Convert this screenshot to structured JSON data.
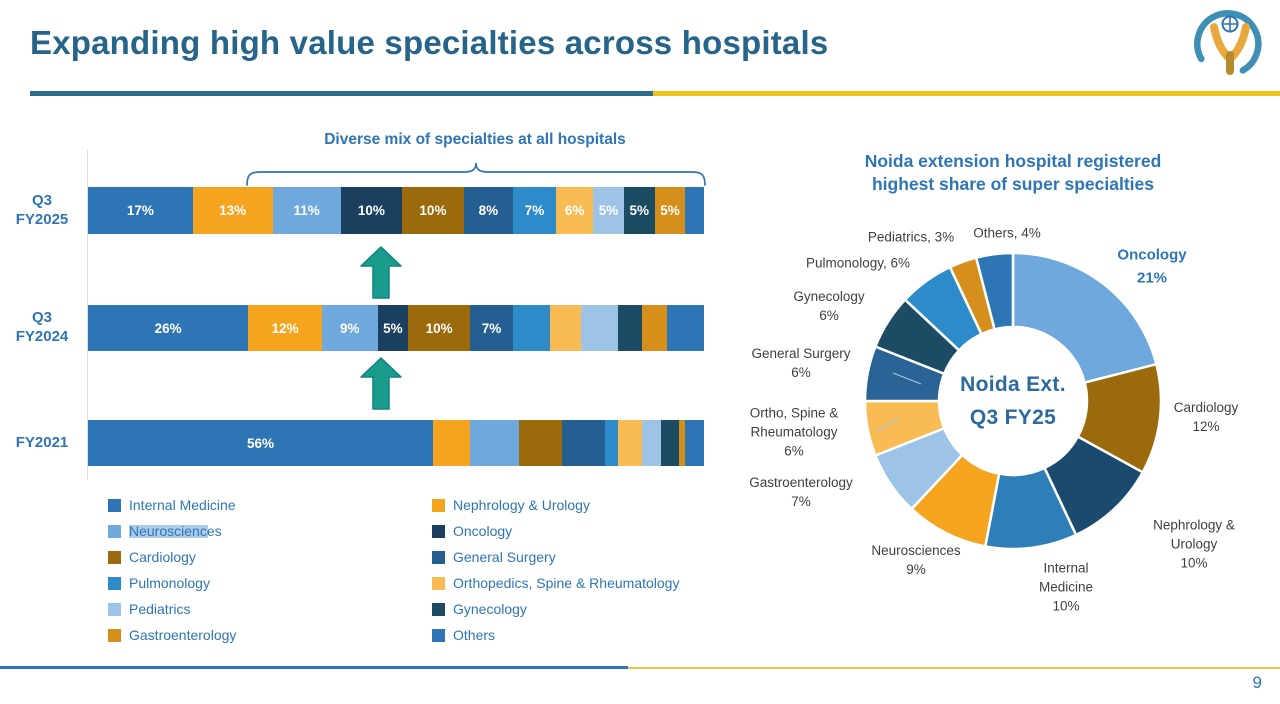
{
  "header": {
    "title": "Expanding high value specialties across hospitals"
  },
  "footer": {
    "page_number": "9"
  },
  "colors": {
    "accent_blue": "#2E75B6",
    "title_blue": "#266489",
    "divider_blue": "#2F6D8C",
    "divider_yellow": "#EDC41C",
    "arrow_green": "#199C8D"
  },
  "chart_data": [
    {
      "type": "bar",
      "variant": "stacked-horizontal-percent",
      "title": "Diverse mix of specialties at all hospitals",
      "categories": [
        "Q3 FY2025",
        "Q3 FY2024",
        "FY2021"
      ],
      "category_lines": [
        [
          "Q3",
          "FY2025"
        ],
        [
          "Q3",
          "FY2024"
        ],
        [
          "FY2021"
        ]
      ],
      "xlim": [
        0,
        100
      ],
      "series": [
        {
          "name": "Internal Medicine",
          "color": "#2E75B6",
          "values": [
            17,
            26,
            56
          ],
          "labels": [
            "17%",
            "26%",
            "56%"
          ]
        },
        {
          "name": "Nephrology & Urology",
          "color": "#F5A41F",
          "values": [
            13,
            12,
            6
          ],
          "labels": [
            "13%",
            "12%",
            null
          ]
        },
        {
          "name": "Neurosciences",
          "color": "#6FA8DC",
          "values": [
            11,
            9,
            8
          ],
          "labels": [
            "11%",
            "9%",
            null
          ]
        },
        {
          "name": "Oncology",
          "color": "#1B3F5F",
          "values": [
            10,
            5,
            0
          ],
          "labels": [
            "10%",
            "5%",
            null
          ]
        },
        {
          "name": "Cardiology",
          "color": "#9A6A0D",
          "values": [
            10,
            10,
            7
          ],
          "labels": [
            "10%",
            "10%",
            null
          ]
        },
        {
          "name": "General Surgery",
          "color": "#255E91",
          "values": [
            8,
            7,
            7
          ],
          "labels": [
            "8%",
            "7%",
            null
          ]
        },
        {
          "name": "Pulmonology",
          "color": "#2D8BCA",
          "values": [
            7,
            6,
            2
          ],
          "labels": [
            "7%",
            null,
            null
          ]
        },
        {
          "name": "Orthopedics, Spine & Rheumatology",
          "color": "#F9BC54",
          "values": [
            6,
            5,
            4
          ],
          "labels": [
            "6%",
            null,
            null
          ]
        },
        {
          "name": "Pediatrics",
          "color": "#9DC3E6",
          "values": [
            5,
            6,
            3
          ],
          "labels": [
            "5%",
            null,
            null
          ]
        },
        {
          "name": "Gynecology",
          "color": "#1C4C64",
          "values": [
            5,
            4,
            3
          ],
          "labels": [
            "5%",
            null,
            null
          ]
        },
        {
          "name": "Gastroenterology",
          "color": "#D78F1C",
          "values": [
            5,
            4,
            1
          ],
          "labels": [
            "5%",
            null,
            null
          ]
        },
        {
          "name": "Others",
          "color": "#2E75B6",
          "values": [
            3,
            6,
            3
          ],
          "labels": [
            null,
            null,
            null
          ]
        }
      ]
    },
    {
      "type": "pie",
      "variant": "donut",
      "title": "Noida extension hospital registered\nhighest share of super specialties",
      "center_label": [
        "Noida Ext.",
        "Q3 FY25"
      ],
      "slices": [
        {
          "id": "oncology",
          "name": "Oncology",
          "value": 21,
          "color": "#6FA8DC",
          "label": "Oncology\n21%",
          "emphasis": true
        },
        {
          "id": "cardiology",
          "name": "Cardiology",
          "value": 12,
          "color": "#9A6A0D",
          "label": "Cardiology\n12%"
        },
        {
          "id": "nephrology_urology",
          "name": "Nephrology & Urology",
          "value": 10,
          "color": "#1A4A6E",
          "label": "Nephrology & Urology\n10%"
        },
        {
          "id": "internal_medicine",
          "name": "Internal Medicine",
          "value": 10,
          "color": "#2E7FB8",
          "label": "Internal\nMedicine\n10%"
        },
        {
          "id": "neurosciences",
          "name": "Neurosciences",
          "value": 9,
          "color": "#F5A41F",
          "label": "Neurosciences\n9%"
        },
        {
          "id": "gastroenterology",
          "name": "Gastroenterology",
          "value": 7,
          "color": "#9DC3E6",
          "label": "Gastroenterology\n7%"
        },
        {
          "id": "ortho_spine_rheuma",
          "name": "Ortho, Spine & Rheumatology",
          "value": 6,
          "color": "#F9BC54",
          "label": "Ortho, Spine &\nRheumatology\n6%"
        },
        {
          "id": "general_surgery",
          "name": "General Surgery",
          "value": 6,
          "color": "#2A6496",
          "label": "General Surgery\n6%"
        },
        {
          "id": "gynecology",
          "name": "Gynecology",
          "value": 6,
          "color": "#1C4C64",
          "label": "Gynecology\n6%"
        },
        {
          "id": "pulmonology",
          "name": "Pulmonology",
          "value": 6,
          "color": "#2D8BCA",
          "label": "Pulmonology, 6%"
        },
        {
          "id": "pediatrics",
          "name": "Pediatrics",
          "value": 3,
          "color": "#D78F1C",
          "label": "Pediatrics, 3%"
        },
        {
          "id": "others",
          "name": "Others",
          "value": 4,
          "color": "#2E75B6",
          "label": "Others, 4%"
        }
      ]
    }
  ],
  "legend": {
    "columns": [
      [
        {
          "name": "Internal Medicine",
          "color": "#2E75B6"
        },
        {
          "name": "Neurosciences",
          "color": "#6FA8DC",
          "highlighted": true
        },
        {
          "name": "Cardiology",
          "color": "#9A6A0D"
        },
        {
          "name": "Pulmonology",
          "color": "#2D8BCA"
        },
        {
          "name": "Pediatrics",
          "color": "#9DC3E6"
        },
        {
          "name": "Gastroenterology",
          "color": "#D78F1C"
        }
      ],
      [
        {
          "name": "Nephrology & Urology",
          "color": "#F5A41F"
        },
        {
          "name": "Oncology",
          "color": "#1B3F5F"
        },
        {
          "name": "General Surgery",
          "color": "#255E91"
        },
        {
          "name": "Orthopedics, Spine & Rheumatology",
          "color": "#F9BC54"
        },
        {
          "name": "Gynecology",
          "color": "#1C4C64"
        },
        {
          "name": "Others",
          "color": "#2E75B6"
        }
      ]
    ]
  }
}
